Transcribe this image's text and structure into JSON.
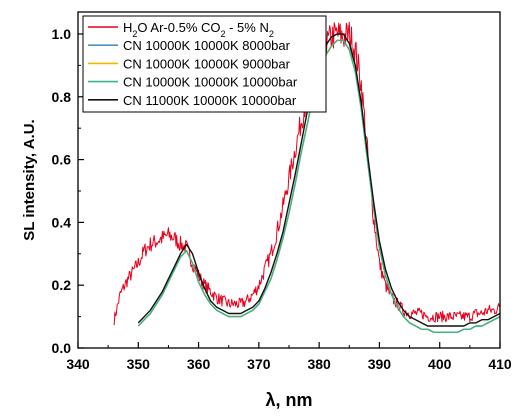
{
  "chart_data": {
    "type": "line",
    "xlabel": "λ, nm",
    "ylabel": "SL intensity, A.U.",
    "xlim": [
      340,
      410
    ],
    "ylim": [
      0.0,
      1.07
    ],
    "x_ticks": [
      340,
      350,
      360,
      370,
      380,
      390,
      400,
      410
    ],
    "x_tick_labels": [
      "340",
      "350",
      "360",
      "370",
      "380",
      "390",
      "400",
      "410"
    ],
    "y_ticks": [
      0.0,
      0.2,
      0.4,
      0.6,
      0.8,
      1.0
    ],
    "y_tick_labels": [
      "0.0",
      "0.2",
      "0.4",
      "0.6",
      "0.8",
      "1.0"
    ],
    "grid": false,
    "legend_position": "top-left",
    "legend": {
      "experimental": {
        "prefix": "H",
        "sub1": "2",
        "middle": "O Ar-0.5% CO",
        "sub2": "2",
        "suffix": " - 5% N",
        "sub3": "2"
      }
    },
    "series": [
      {
        "name": "H2O Ar-0.5% CO2 - 5% N2",
        "color": "#e8001c",
        "kind": "experimental",
        "x": [
          346,
          347,
          348,
          349,
          350,
          351,
          352,
          353,
          354,
          355,
          356,
          357,
          358,
          359,
          360,
          361,
          362,
          363,
          364,
          365,
          366,
          367,
          368,
          369,
          370,
          371,
          372,
          373,
          374,
          375,
          376,
          377,
          378,
          379,
          380,
          381,
          382,
          383,
          384,
          385,
          386,
          387,
          388,
          389,
          390,
          391,
          392,
          393,
          394,
          395,
          396,
          397,
          398,
          399,
          400,
          401,
          402,
          403,
          404,
          405,
          406,
          407,
          408,
          409,
          410
        ],
        "y": [
          0.09,
          0.17,
          0.21,
          0.24,
          0.27,
          0.31,
          0.33,
          0.34,
          0.35,
          0.36,
          0.35,
          0.33,
          0.32,
          0.27,
          0.23,
          0.2,
          0.18,
          0.16,
          0.15,
          0.14,
          0.14,
          0.14,
          0.15,
          0.17,
          0.2,
          0.25,
          0.3,
          0.37,
          0.45,
          0.54,
          0.63,
          0.72,
          0.8,
          0.87,
          0.92,
          0.96,
          0.99,
          1.0,
          0.99,
          1.0,
          0.95,
          0.84,
          0.63,
          0.42,
          0.27,
          0.2,
          0.16,
          0.14,
          0.12,
          0.11,
          0.11,
          0.11,
          0.1,
          0.1,
          0.1,
          0.1,
          0.1,
          0.1,
          0.1,
          0.1,
          0.11,
          0.11,
          0.12,
          0.12,
          0.13
        ],
        "noise": 0.035
      },
      {
        "name": "CN 10000K 10000K 8000bar",
        "color": "#4e93c4",
        "kind": "model",
        "x": [
          350,
          351,
          352,
          353,
          354,
          355,
          356,
          357,
          358,
          359,
          360,
          361,
          362,
          363,
          364,
          365,
          366,
          367,
          368,
          369,
          370,
          371,
          372,
          373,
          374,
          375,
          376,
          377,
          378,
          379,
          380,
          381,
          382,
          383,
          384,
          385,
          386,
          387,
          388,
          389,
          390,
          391,
          392,
          393,
          394,
          395,
          396,
          397,
          398,
          399,
          400,
          401,
          402,
          403,
          404,
          405,
          406,
          407,
          408,
          409,
          410
        ],
        "y": [
          0.07,
          0.09,
          0.11,
          0.14,
          0.17,
          0.21,
          0.25,
          0.29,
          0.31,
          0.27,
          0.21,
          0.17,
          0.14,
          0.12,
          0.11,
          0.1,
          0.1,
          0.1,
          0.11,
          0.12,
          0.14,
          0.18,
          0.22,
          0.28,
          0.35,
          0.43,
          0.52,
          0.62,
          0.71,
          0.8,
          0.88,
          0.93,
          0.96,
          0.98,
          0.98,
          0.95,
          0.88,
          0.76,
          0.6,
          0.45,
          0.32,
          0.23,
          0.17,
          0.13,
          0.1,
          0.08,
          0.07,
          0.06,
          0.06,
          0.05,
          0.05,
          0.05,
          0.05,
          0.05,
          0.06,
          0.06,
          0.07,
          0.07,
          0.08,
          0.09,
          0.1
        ]
      },
      {
        "name": "CN 10000K 10000K 9000bar",
        "color": "#f0b700",
        "kind": "model",
        "x": [
          350,
          351,
          352,
          353,
          354,
          355,
          356,
          357,
          358,
          359,
          360,
          361,
          362,
          363,
          364,
          365,
          366,
          367,
          368,
          369,
          370,
          371,
          372,
          373,
          374,
          375,
          376,
          377,
          378,
          379,
          380,
          381,
          382,
          383,
          384,
          385,
          386,
          387,
          388,
          389,
          390,
          391,
          392,
          393,
          394,
          395,
          396,
          397,
          398,
          399,
          400,
          401,
          402,
          403,
          404,
          405,
          406,
          407,
          408,
          409,
          410
        ],
        "y": [
          0.07,
          0.09,
          0.11,
          0.14,
          0.17,
          0.21,
          0.25,
          0.29,
          0.31,
          0.27,
          0.21,
          0.17,
          0.14,
          0.12,
          0.11,
          0.1,
          0.1,
          0.1,
          0.11,
          0.12,
          0.14,
          0.18,
          0.22,
          0.28,
          0.35,
          0.43,
          0.52,
          0.62,
          0.71,
          0.8,
          0.88,
          0.93,
          0.96,
          0.98,
          0.98,
          0.95,
          0.88,
          0.76,
          0.6,
          0.45,
          0.32,
          0.23,
          0.17,
          0.13,
          0.1,
          0.08,
          0.07,
          0.06,
          0.06,
          0.05,
          0.05,
          0.05,
          0.05,
          0.05,
          0.06,
          0.06,
          0.07,
          0.07,
          0.08,
          0.09,
          0.1
        ]
      },
      {
        "name": "CN 10000K 10000K 10000bar",
        "color": "#3cb38a",
        "kind": "model",
        "x": [
          350,
          351,
          352,
          353,
          354,
          355,
          356,
          357,
          358,
          359,
          360,
          361,
          362,
          363,
          364,
          365,
          366,
          367,
          368,
          369,
          370,
          371,
          372,
          373,
          374,
          375,
          376,
          377,
          378,
          379,
          380,
          381,
          382,
          383,
          384,
          385,
          386,
          387,
          388,
          389,
          390,
          391,
          392,
          393,
          394,
          395,
          396,
          397,
          398,
          399,
          400,
          401,
          402,
          403,
          404,
          405,
          406,
          407,
          408,
          409,
          410
        ],
        "y": [
          0.07,
          0.09,
          0.11,
          0.14,
          0.17,
          0.21,
          0.25,
          0.29,
          0.31,
          0.27,
          0.21,
          0.17,
          0.14,
          0.12,
          0.11,
          0.1,
          0.1,
          0.1,
          0.11,
          0.12,
          0.14,
          0.18,
          0.22,
          0.28,
          0.35,
          0.43,
          0.52,
          0.62,
          0.71,
          0.8,
          0.88,
          0.93,
          0.96,
          0.98,
          0.98,
          0.95,
          0.88,
          0.76,
          0.6,
          0.45,
          0.32,
          0.23,
          0.17,
          0.13,
          0.1,
          0.08,
          0.07,
          0.06,
          0.06,
          0.05,
          0.05,
          0.05,
          0.05,
          0.05,
          0.06,
          0.06,
          0.07,
          0.07,
          0.08,
          0.09,
          0.1
        ]
      },
      {
        "name": "CN 11000K 10000K 10000bar",
        "color": "#111111",
        "kind": "model",
        "x": [
          350,
          351,
          352,
          353,
          354,
          355,
          356,
          357,
          358,
          359,
          360,
          361,
          362,
          363,
          364,
          365,
          366,
          367,
          368,
          369,
          370,
          371,
          372,
          373,
          374,
          375,
          376,
          377,
          378,
          379,
          380,
          381,
          382,
          383,
          384,
          385,
          386,
          387,
          388,
          389,
          390,
          391,
          392,
          393,
          394,
          395,
          396,
          397,
          398,
          399,
          400,
          401,
          402,
          403,
          404,
          405,
          406,
          407,
          408,
          409,
          410
        ],
        "y": [
          0.08,
          0.1,
          0.12,
          0.15,
          0.18,
          0.22,
          0.26,
          0.3,
          0.33,
          0.3,
          0.24,
          0.19,
          0.15,
          0.13,
          0.12,
          0.11,
          0.11,
          0.11,
          0.12,
          0.13,
          0.15,
          0.19,
          0.24,
          0.3,
          0.37,
          0.46,
          0.55,
          0.65,
          0.75,
          0.84,
          0.91,
          0.96,
          0.99,
          1.0,
          1.0,
          0.97,
          0.9,
          0.78,
          0.62,
          0.47,
          0.34,
          0.25,
          0.19,
          0.15,
          0.12,
          0.1,
          0.09,
          0.08,
          0.07,
          0.07,
          0.07,
          0.07,
          0.07,
          0.07,
          0.07,
          0.08,
          0.08,
          0.09,
          0.09,
          0.1,
          0.11
        ]
      }
    ]
  }
}
